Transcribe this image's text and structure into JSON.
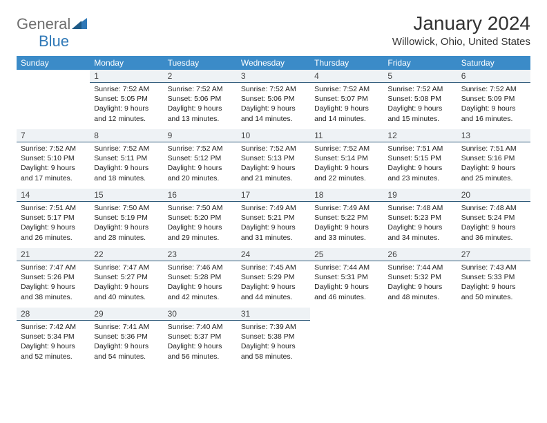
{
  "branding": {
    "logo_word1": "General",
    "logo_word2": "Blue",
    "logo_word1_color": "#6f6f6f",
    "logo_word2_color": "#2f78b7",
    "logo_icon_color": "#2f78b7"
  },
  "title": "January 2024",
  "location": "Willowick, Ohio, United States",
  "colors": {
    "header_bg": "#3b8bc8",
    "header_text": "#ffffff",
    "daynum_bg": "#eef2f5",
    "daynum_border": "#2f5a7a",
    "page_bg": "#ffffff",
    "body_text": "#222222"
  },
  "calendar": {
    "type": "table",
    "days_of_week": [
      "Sunday",
      "Monday",
      "Tuesday",
      "Wednesday",
      "Thursday",
      "Friday",
      "Saturday"
    ],
    "weeks": [
      [
        null,
        {
          "num": "1",
          "sunrise": "Sunrise: 7:52 AM",
          "sunset": "Sunset: 5:05 PM",
          "daylight": "Daylight: 9 hours and 12 minutes."
        },
        {
          "num": "2",
          "sunrise": "Sunrise: 7:52 AM",
          "sunset": "Sunset: 5:06 PM",
          "daylight": "Daylight: 9 hours and 13 minutes."
        },
        {
          "num": "3",
          "sunrise": "Sunrise: 7:52 AM",
          "sunset": "Sunset: 5:06 PM",
          "daylight": "Daylight: 9 hours and 14 minutes."
        },
        {
          "num": "4",
          "sunrise": "Sunrise: 7:52 AM",
          "sunset": "Sunset: 5:07 PM",
          "daylight": "Daylight: 9 hours and 14 minutes."
        },
        {
          "num": "5",
          "sunrise": "Sunrise: 7:52 AM",
          "sunset": "Sunset: 5:08 PM",
          "daylight": "Daylight: 9 hours and 15 minutes."
        },
        {
          "num": "6",
          "sunrise": "Sunrise: 7:52 AM",
          "sunset": "Sunset: 5:09 PM",
          "daylight": "Daylight: 9 hours and 16 minutes."
        }
      ],
      [
        {
          "num": "7",
          "sunrise": "Sunrise: 7:52 AM",
          "sunset": "Sunset: 5:10 PM",
          "daylight": "Daylight: 9 hours and 17 minutes."
        },
        {
          "num": "8",
          "sunrise": "Sunrise: 7:52 AM",
          "sunset": "Sunset: 5:11 PM",
          "daylight": "Daylight: 9 hours and 18 minutes."
        },
        {
          "num": "9",
          "sunrise": "Sunrise: 7:52 AM",
          "sunset": "Sunset: 5:12 PM",
          "daylight": "Daylight: 9 hours and 20 minutes."
        },
        {
          "num": "10",
          "sunrise": "Sunrise: 7:52 AM",
          "sunset": "Sunset: 5:13 PM",
          "daylight": "Daylight: 9 hours and 21 minutes."
        },
        {
          "num": "11",
          "sunrise": "Sunrise: 7:52 AM",
          "sunset": "Sunset: 5:14 PM",
          "daylight": "Daylight: 9 hours and 22 minutes."
        },
        {
          "num": "12",
          "sunrise": "Sunrise: 7:51 AM",
          "sunset": "Sunset: 5:15 PM",
          "daylight": "Daylight: 9 hours and 23 minutes."
        },
        {
          "num": "13",
          "sunrise": "Sunrise: 7:51 AM",
          "sunset": "Sunset: 5:16 PM",
          "daylight": "Daylight: 9 hours and 25 minutes."
        }
      ],
      [
        {
          "num": "14",
          "sunrise": "Sunrise: 7:51 AM",
          "sunset": "Sunset: 5:17 PM",
          "daylight": "Daylight: 9 hours and 26 minutes."
        },
        {
          "num": "15",
          "sunrise": "Sunrise: 7:50 AM",
          "sunset": "Sunset: 5:19 PM",
          "daylight": "Daylight: 9 hours and 28 minutes."
        },
        {
          "num": "16",
          "sunrise": "Sunrise: 7:50 AM",
          "sunset": "Sunset: 5:20 PM",
          "daylight": "Daylight: 9 hours and 29 minutes."
        },
        {
          "num": "17",
          "sunrise": "Sunrise: 7:49 AM",
          "sunset": "Sunset: 5:21 PM",
          "daylight": "Daylight: 9 hours and 31 minutes."
        },
        {
          "num": "18",
          "sunrise": "Sunrise: 7:49 AM",
          "sunset": "Sunset: 5:22 PM",
          "daylight": "Daylight: 9 hours and 33 minutes."
        },
        {
          "num": "19",
          "sunrise": "Sunrise: 7:48 AM",
          "sunset": "Sunset: 5:23 PM",
          "daylight": "Daylight: 9 hours and 34 minutes."
        },
        {
          "num": "20",
          "sunrise": "Sunrise: 7:48 AM",
          "sunset": "Sunset: 5:24 PM",
          "daylight": "Daylight: 9 hours and 36 minutes."
        }
      ],
      [
        {
          "num": "21",
          "sunrise": "Sunrise: 7:47 AM",
          "sunset": "Sunset: 5:26 PM",
          "daylight": "Daylight: 9 hours and 38 minutes."
        },
        {
          "num": "22",
          "sunrise": "Sunrise: 7:47 AM",
          "sunset": "Sunset: 5:27 PM",
          "daylight": "Daylight: 9 hours and 40 minutes."
        },
        {
          "num": "23",
          "sunrise": "Sunrise: 7:46 AM",
          "sunset": "Sunset: 5:28 PM",
          "daylight": "Daylight: 9 hours and 42 minutes."
        },
        {
          "num": "24",
          "sunrise": "Sunrise: 7:45 AM",
          "sunset": "Sunset: 5:29 PM",
          "daylight": "Daylight: 9 hours and 44 minutes."
        },
        {
          "num": "25",
          "sunrise": "Sunrise: 7:44 AM",
          "sunset": "Sunset: 5:31 PM",
          "daylight": "Daylight: 9 hours and 46 minutes."
        },
        {
          "num": "26",
          "sunrise": "Sunrise: 7:44 AM",
          "sunset": "Sunset: 5:32 PM",
          "daylight": "Daylight: 9 hours and 48 minutes."
        },
        {
          "num": "27",
          "sunrise": "Sunrise: 7:43 AM",
          "sunset": "Sunset: 5:33 PM",
          "daylight": "Daylight: 9 hours and 50 minutes."
        }
      ],
      [
        {
          "num": "28",
          "sunrise": "Sunrise: 7:42 AM",
          "sunset": "Sunset: 5:34 PM",
          "daylight": "Daylight: 9 hours and 52 minutes."
        },
        {
          "num": "29",
          "sunrise": "Sunrise: 7:41 AM",
          "sunset": "Sunset: 5:36 PM",
          "daylight": "Daylight: 9 hours and 54 minutes."
        },
        {
          "num": "30",
          "sunrise": "Sunrise: 7:40 AM",
          "sunset": "Sunset: 5:37 PM",
          "daylight": "Daylight: 9 hours and 56 minutes."
        },
        {
          "num": "31",
          "sunrise": "Sunrise: 7:39 AM",
          "sunset": "Sunset: 5:38 PM",
          "daylight": "Daylight: 9 hours and 58 minutes."
        },
        null,
        null,
        null
      ]
    ]
  }
}
